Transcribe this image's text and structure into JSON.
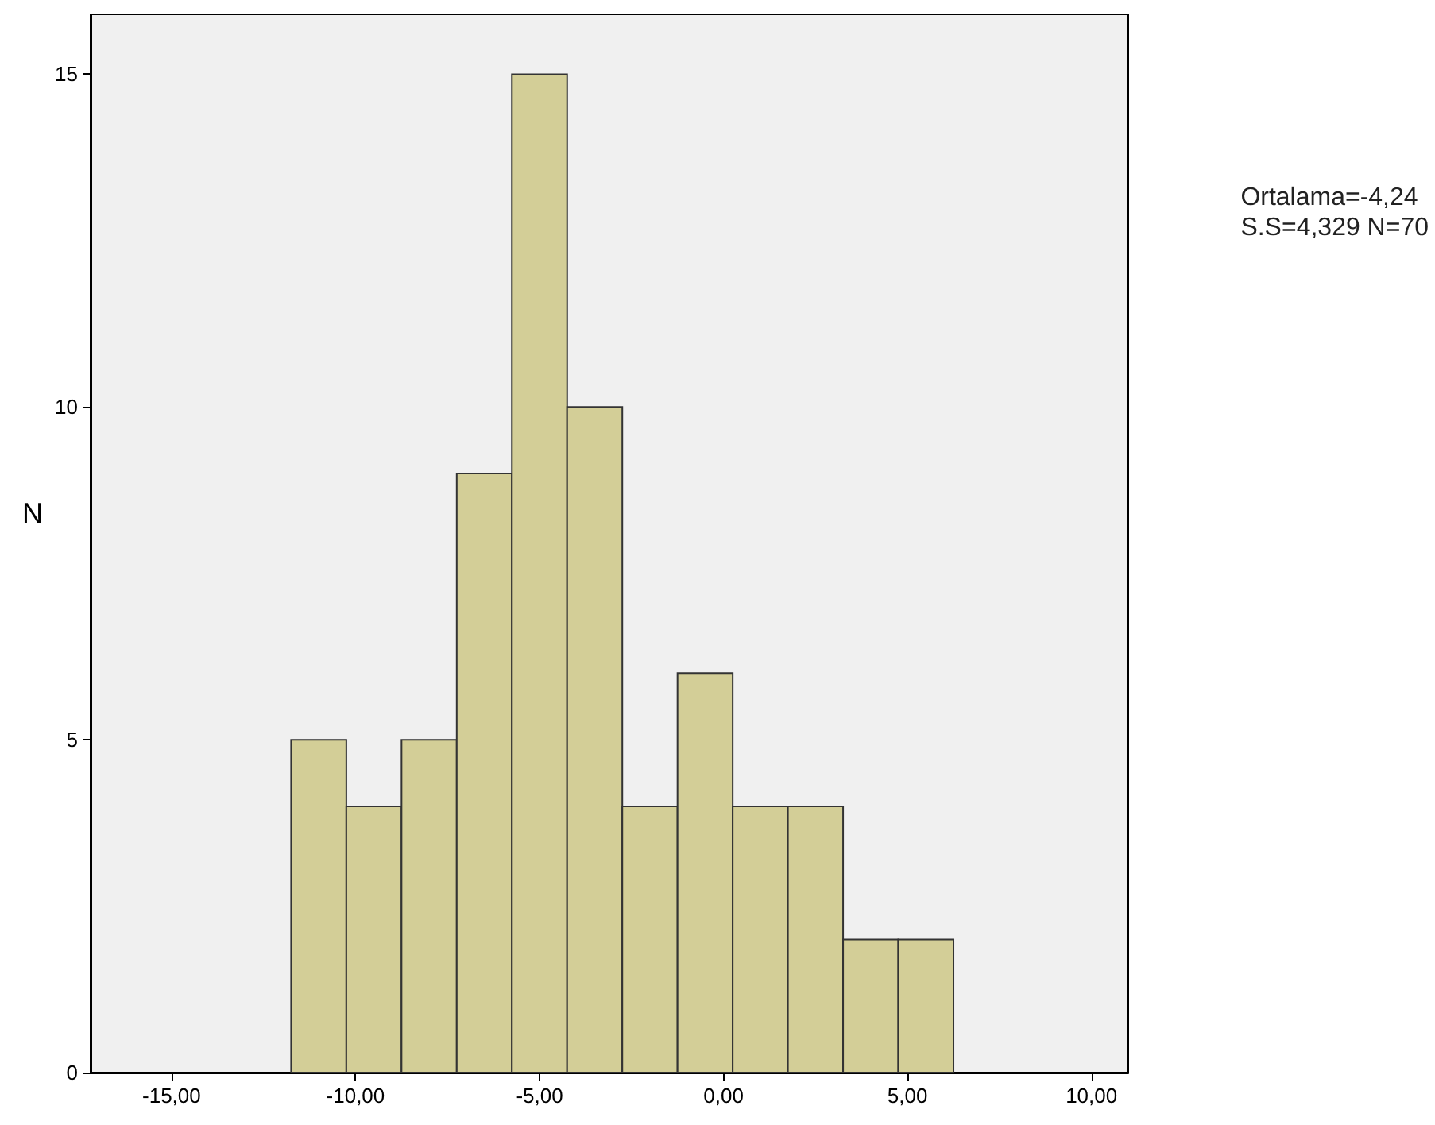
{
  "chart_data": {
    "type": "histogram",
    "ylabel": "N",
    "annotations": [
      "Ortalama=-4,24",
      "S.S=4,329 N=70"
    ],
    "bins": [
      -11.75,
      -10.25,
      -8.75,
      -7.25,
      -5.75,
      -4.25,
      -2.75,
      -1.25,
      0.25,
      1.75,
      3.25,
      4.75,
      6.25
    ],
    "values": [
      5,
      4,
      5,
      9,
      15,
      10,
      4,
      6,
      4,
      4,
      2,
      2
    ],
    "color": "#d3ce97",
    "xlim": [
      -17.2,
      11.0
    ],
    "ylim": [
      0,
      15.9
    ],
    "xticks": [
      {
        "value": -15,
        "label": "-15,00"
      },
      {
        "value": -10,
        "label": "-10,00"
      },
      {
        "value": -5,
        "label": "-5,00"
      },
      {
        "value": 0,
        "label": "0,00"
      },
      {
        "value": 5,
        "label": "5,00"
      },
      {
        "value": 10,
        "label": "10,00"
      }
    ],
    "yticks": [
      0,
      5,
      10,
      15
    ],
    "grid": false
  }
}
